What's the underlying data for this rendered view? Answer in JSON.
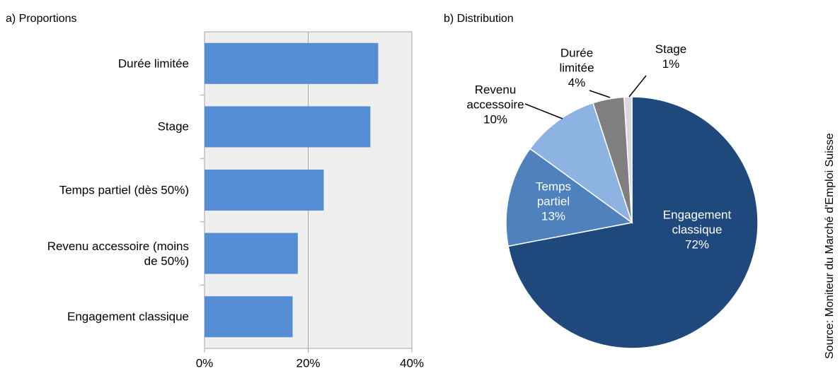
{
  "chart_data": [
    {
      "type": "barh",
      "title": "a) Proportions",
      "categories": [
        "Durée limitée",
        "Stage",
        "Temps partiel (dès 50%)",
        "Revenu accessoire (moins de 50%)",
        "Engagement classique"
      ],
      "values": [
        33.5,
        32,
        23,
        18,
        17
      ],
      "color": "#558ed5",
      "xlim": [
        0,
        40
      ],
      "xticks": [
        {
          "value": 0,
          "label": "0%"
        },
        {
          "value": 20,
          "label": "20%"
        },
        {
          "value": 40,
          "label": "40%"
        }
      ],
      "grid": true
    },
    {
      "type": "pie",
      "title": "b) Distribution",
      "categories": [
        "Engagement classique",
        "Temps partiel",
        "Revenu accessoire",
        "Durée limitée",
        "Stage"
      ],
      "values": [
        72,
        13,
        10,
        4,
        1
      ],
      "value_labels": [
        "72%",
        "13%",
        "10%",
        "4%",
        "1%"
      ],
      "colors": [
        "#1f497d",
        "#4f81bd",
        "#8db3e2",
        "#7f7f7f",
        "#d9d9d9"
      ]
    }
  ],
  "source": "Source: Moniteur du Marché d'Emploi Suisse"
}
